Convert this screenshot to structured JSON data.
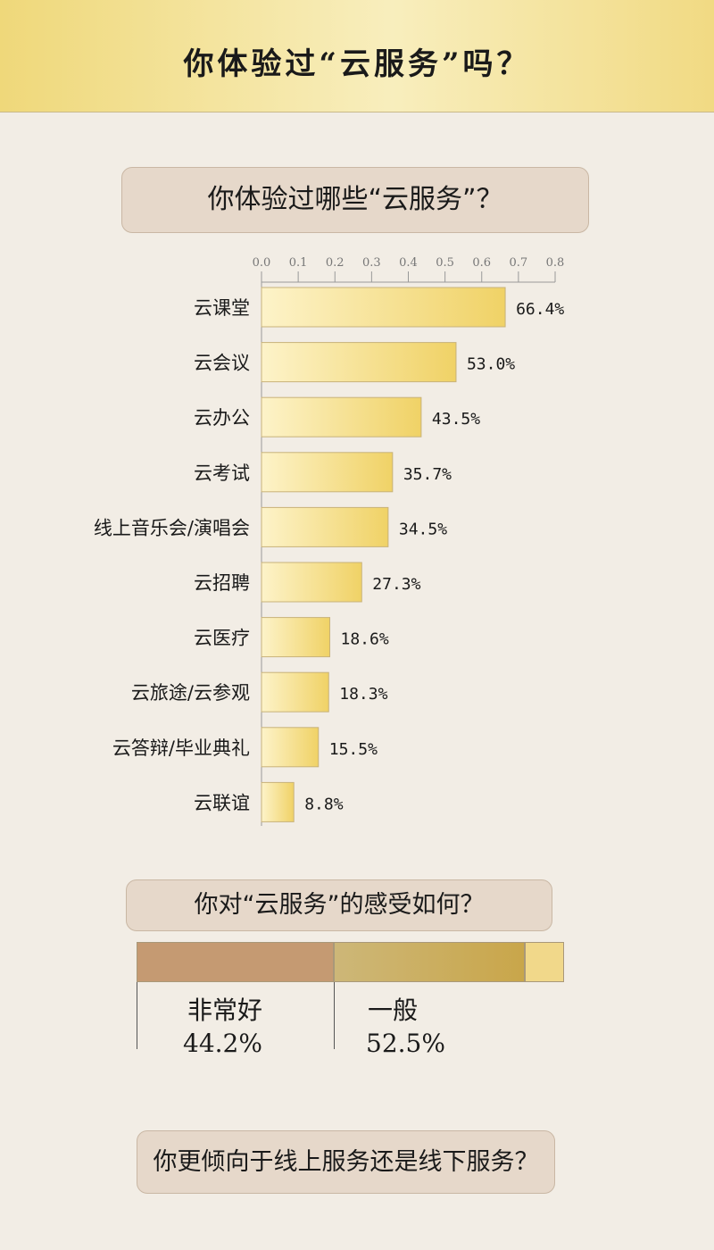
{
  "header": {
    "title": "你体验过“云服务”吗？"
  },
  "question1": {
    "text": "你体验过哪些“云服务”？"
  },
  "chart_data": {
    "type": "bar",
    "orientation": "horizontal",
    "x_ticks": [
      "0.0",
      "0.1",
      "0.2",
      "0.3",
      "0.4",
      "0.5",
      "0.6",
      "0.7",
      "0.8"
    ],
    "xlim": [
      0,
      0.8
    ],
    "categories": [
      "云课堂",
      "云会议",
      "云办公",
      "云考试",
      "线上音乐会/演唱会",
      "云招聘",
      "云医疗",
      "云旅途/云参观",
      "云答辩/毕业典礼",
      "云联谊"
    ],
    "values": [
      0.664,
      0.53,
      0.435,
      0.357,
      0.345,
      0.273,
      0.186,
      0.183,
      0.155,
      0.088
    ],
    "value_labels": [
      "66.4%",
      "53.0%",
      "43.5%",
      "35.7%",
      "34.5%",
      "27.3%",
      "18.6%",
      "18.3%",
      "15.5%",
      "8.8%"
    ],
    "legend": "none",
    "grid": false
  },
  "question2": {
    "text": "你对“云服务”的感受如何？",
    "segments": [
      {
        "label": "非常好",
        "value": "44.2%",
        "share": 0.442
      },
      {
        "label": "一般",
        "value": "52.5%",
        "share": 0.525
      }
    ]
  },
  "question3": {
    "text": "你更倾向于线上服务还是线下服务？"
  },
  "colors": {
    "bar_start": "#fdf3c9",
    "bar_end": "#f0d266",
    "good": "#c59a72",
    "average": "#c9a64a",
    "header": "#efd87a"
  }
}
